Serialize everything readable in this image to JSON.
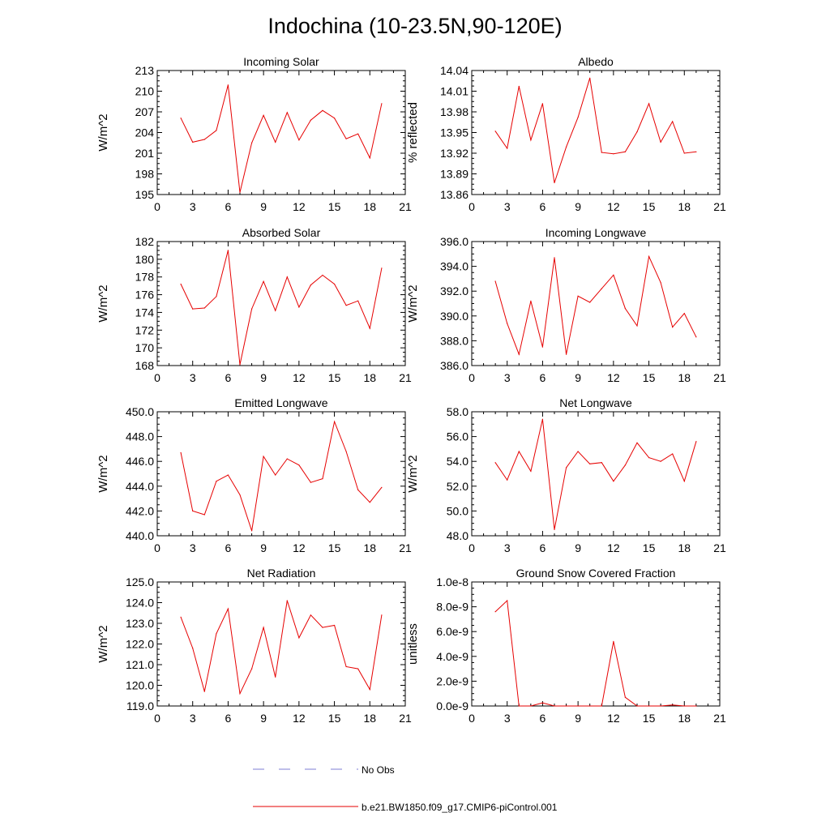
{
  "figure_title": "Indochina (10-23.5N,90-120E)",
  "legend": {
    "obs_label": "No Obs",
    "obs_color": "#7d7dd6",
    "model_label": "b.e21.BW1850.f09_g17.CMIP6-piControl.001",
    "model_color": "#e60000"
  },
  "chart_data": [
    {
      "type": "line",
      "title": "Incoming Solar",
      "ylabel": "W/m^2",
      "xlim": [
        0,
        21
      ],
      "xticks": [
        0,
        3,
        6,
        9,
        12,
        15,
        18,
        21
      ],
      "xtick_labels": [
        "0",
        "3",
        "6",
        "9",
        "12",
        "15",
        "18",
        "21"
      ],
      "ylim": [
        195,
        213
      ],
      "yticks": [
        195,
        198,
        201,
        204,
        207,
        210,
        213
      ],
      "ytick_labels": [
        "195",
        "198",
        "201",
        "204",
        "207",
        "210",
        "213"
      ],
      "series": [
        {
          "name": "b.e21.BW1850.f09_g17.CMIP6-piControl.001",
          "x": [
            2,
            3,
            4,
            5,
            6,
            7,
            8,
            9,
            10,
            11,
            12,
            13,
            14,
            15,
            16,
            17,
            18,
            19
          ],
          "values": [
            206.1,
            202.6,
            203.0,
            204.3,
            210.9,
            195.3,
            202.5,
            206.5,
            202.6,
            206.9,
            202.9,
            205.8,
            207.2,
            206.1,
            203.1,
            203.8,
            200.3,
            208.2
          ]
        }
      ]
    },
    {
      "type": "line",
      "title": "Albedo",
      "ylabel": "% reflected",
      "xlim": [
        0,
        21
      ],
      "xticks": [
        0,
        3,
        6,
        9,
        12,
        15,
        18,
        21
      ],
      "xtick_labels": [
        "0",
        "3",
        "6",
        "9",
        "12",
        "15",
        "18",
        "21"
      ],
      "ylim": [
        13.86,
        14.04
      ],
      "yticks": [
        13.86,
        13.89,
        13.92,
        13.95,
        13.98,
        14.01,
        14.04
      ],
      "ytick_labels": [
        "13.86",
        "13.89",
        "13.92",
        "13.95",
        "13.98",
        "14.01",
        "14.04"
      ],
      "series": [
        {
          "name": "b.e21.BW1850.f09_g17.CMIP6-piControl.001",
          "x": [
            2,
            3,
            4,
            5,
            6,
            7,
            8,
            9,
            10,
            11,
            12,
            13,
            14,
            15,
            16,
            17,
            18,
            19
          ],
          "values": [
            13.952,
            13.927,
            14.017,
            13.939,
            13.992,
            13.877,
            13.929,
            13.972,
            14.029,
            13.921,
            13.919,
            13.922,
            13.951,
            13.992,
            13.936,
            13.966,
            13.92,
            13.922
          ]
        }
      ]
    },
    {
      "type": "line",
      "title": "Absorbed Solar",
      "ylabel": "W/m^2",
      "xlim": [
        0,
        21
      ],
      "xticks": [
        0,
        3,
        6,
        9,
        12,
        15,
        18,
        21
      ],
      "xtick_labels": [
        "0",
        "3",
        "6",
        "9",
        "12",
        "15",
        "18",
        "21"
      ],
      "ylim": [
        168,
        182
      ],
      "yticks": [
        168,
        170,
        172,
        174,
        176,
        178,
        180,
        182
      ],
      "ytick_labels": [
        "168",
        "170",
        "172",
        "174",
        "176",
        "178",
        "180",
        "182"
      ],
      "series": [
        {
          "name": "b.e21.BW1850.f09_g17.CMIP6-piControl.001",
          "x": [
            2,
            3,
            4,
            5,
            6,
            7,
            8,
            9,
            10,
            11,
            12,
            13,
            14,
            15,
            16,
            17,
            18,
            19
          ],
          "values": [
            177.2,
            174.4,
            174.5,
            175.8,
            181.0,
            168.1,
            174.4,
            177.5,
            174.2,
            178.0,
            174.6,
            177.1,
            178.2,
            177.2,
            174.8,
            175.3,
            172.2,
            179.0
          ]
        }
      ]
    },
    {
      "type": "line",
      "title": "Incoming Longwave",
      "ylabel": "W/m^2",
      "xlim": [
        0,
        21
      ],
      "xticks": [
        0,
        3,
        6,
        9,
        12,
        15,
        18,
        21
      ],
      "xtick_labels": [
        "0",
        "3",
        "6",
        "9",
        "12",
        "15",
        "18",
        "21"
      ],
      "ylim": [
        386.0,
        396.0
      ],
      "yticks": [
        386.0,
        388.0,
        390.0,
        392.0,
        394.0,
        396.0
      ],
      "ytick_labels": [
        "386.0",
        "388.0",
        "390.0",
        "392.0",
        "394.0",
        "396.0"
      ],
      "series": [
        {
          "name": "b.e21.BW1850.f09_g17.CMIP6-piControl.001",
          "x": [
            2,
            3,
            4,
            5,
            6,
            7,
            8,
            9,
            10,
            11,
            12,
            13,
            14,
            15,
            16,
            17,
            18,
            19
          ],
          "values": [
            392.8,
            389.4,
            386.9,
            391.2,
            387.5,
            394.7,
            386.9,
            391.6,
            391.1,
            392.2,
            393.3,
            390.6,
            389.2,
            394.8,
            392.7,
            389.1,
            390.2,
            388.3
          ]
        }
      ]
    },
    {
      "type": "line",
      "title": "Emitted Longwave",
      "ylabel": "W/m^2",
      "xlim": [
        0,
        21
      ],
      "xticks": [
        0,
        3,
        6,
        9,
        12,
        15,
        18,
        21
      ],
      "xtick_labels": [
        "0",
        "3",
        "6",
        "9",
        "12",
        "15",
        "18",
        "21"
      ],
      "ylim": [
        440.0,
        450.0
      ],
      "yticks": [
        440.0,
        442.0,
        444.0,
        446.0,
        448.0,
        450.0
      ],
      "ytick_labels": [
        "440.0",
        "442.0",
        "444.0",
        "446.0",
        "448.0",
        "450.0"
      ],
      "series": [
        {
          "name": "b.e21.BW1850.f09_g17.CMIP6-piControl.001",
          "x": [
            2,
            3,
            4,
            5,
            6,
            7,
            8,
            9,
            10,
            11,
            12,
            13,
            14,
            15,
            16,
            17,
            18,
            19
          ],
          "values": [
            446.7,
            442.0,
            441.7,
            444.4,
            444.9,
            443.3,
            440.4,
            446.4,
            444.9,
            446.2,
            445.7,
            444.3,
            444.6,
            449.2,
            446.8,
            443.7,
            442.7,
            443.9
          ]
        }
      ]
    },
    {
      "type": "line",
      "title": "Net Longwave",
      "ylabel": "W/m^2",
      "xlim": [
        0,
        21
      ],
      "xticks": [
        0,
        3,
        6,
        9,
        12,
        15,
        18,
        21
      ],
      "xtick_labels": [
        "0",
        "3",
        "6",
        "9",
        "12",
        "15",
        "18",
        "21"
      ],
      "ylim": [
        48.0,
        58.0
      ],
      "yticks": [
        48.0,
        50.0,
        52.0,
        54.0,
        56.0,
        58.0
      ],
      "ytick_labels": [
        "48.0",
        "50.0",
        "52.0",
        "54.0",
        "56.0",
        "58.0"
      ],
      "series": [
        {
          "name": "b.e21.BW1850.f09_g17.CMIP6-piControl.001",
          "x": [
            2,
            3,
            4,
            5,
            6,
            7,
            8,
            9,
            10,
            11,
            12,
            13,
            14,
            15,
            16,
            17,
            18,
            19
          ],
          "values": [
            53.9,
            52.5,
            54.8,
            53.2,
            57.4,
            48.5,
            53.5,
            54.8,
            53.8,
            53.9,
            52.4,
            53.7,
            55.5,
            54.3,
            54.0,
            54.6,
            52.4,
            55.6
          ]
        }
      ]
    },
    {
      "type": "line",
      "title": "Net Radiation",
      "ylabel": "W/m^2",
      "xlim": [
        0,
        21
      ],
      "xticks": [
        0,
        3,
        6,
        9,
        12,
        15,
        18,
        21
      ],
      "xtick_labels": [
        "0",
        "3",
        "6",
        "9",
        "12",
        "15",
        "18",
        "21"
      ],
      "ylim": [
        119.0,
        125.0
      ],
      "yticks": [
        119.0,
        120.0,
        121.0,
        122.0,
        123.0,
        124.0,
        125.0
      ],
      "ytick_labels": [
        "119.0",
        "120.0",
        "121.0",
        "122.0",
        "123.0",
        "124.0",
        "125.0"
      ],
      "series": [
        {
          "name": "b.e21.BW1850.f09_g17.CMIP6-piControl.001",
          "x": [
            2,
            3,
            4,
            5,
            6,
            7,
            8,
            9,
            10,
            11,
            12,
            13,
            14,
            15,
            16,
            17,
            18,
            19
          ],
          "values": [
            123.3,
            121.8,
            119.7,
            122.5,
            123.7,
            119.6,
            120.8,
            122.8,
            120.4,
            124.1,
            122.3,
            123.4,
            122.8,
            122.9,
            120.9,
            120.8,
            119.8,
            123.4
          ]
        }
      ]
    },
    {
      "type": "line",
      "title": "Ground Snow Covered Fraction",
      "ylabel": "unitless",
      "xlim": [
        0,
        21
      ],
      "xticks": [
        0,
        3,
        6,
        9,
        12,
        15,
        18,
        21
      ],
      "xtick_labels": [
        "0",
        "3",
        "6",
        "9",
        "12",
        "15",
        "18",
        "21"
      ],
      "ylim": [
        0.0,
        1e-08
      ],
      "yticks": [
        0.0,
        2e-09,
        4e-09,
        6e-09,
        8e-09,
        1e-08
      ],
      "ytick_labels": [
        "0.0e-9",
        "2.0e-9",
        "4.0e-9",
        "6.0e-9",
        "8.0e-9",
        "1.0e-8"
      ],
      "series": [
        {
          "name": "b.e21.BW1850.f09_g17.CMIP6-piControl.001",
          "x": [
            2,
            3,
            4,
            5,
            6,
            7,
            8,
            9,
            10,
            11,
            12,
            13,
            14,
            15,
            16,
            17,
            18,
            19
          ],
          "values": [
            7.6e-09,
            8.5e-09,
            0.0,
            0.0,
            2.5e-10,
            0.0,
            0.0,
            0.0,
            0.0,
            0.0,
            5.2e-09,
            7e-10,
            0.0,
            0.0,
            0.0,
            8e-11,
            0.0,
            0.0
          ]
        }
      ]
    }
  ]
}
